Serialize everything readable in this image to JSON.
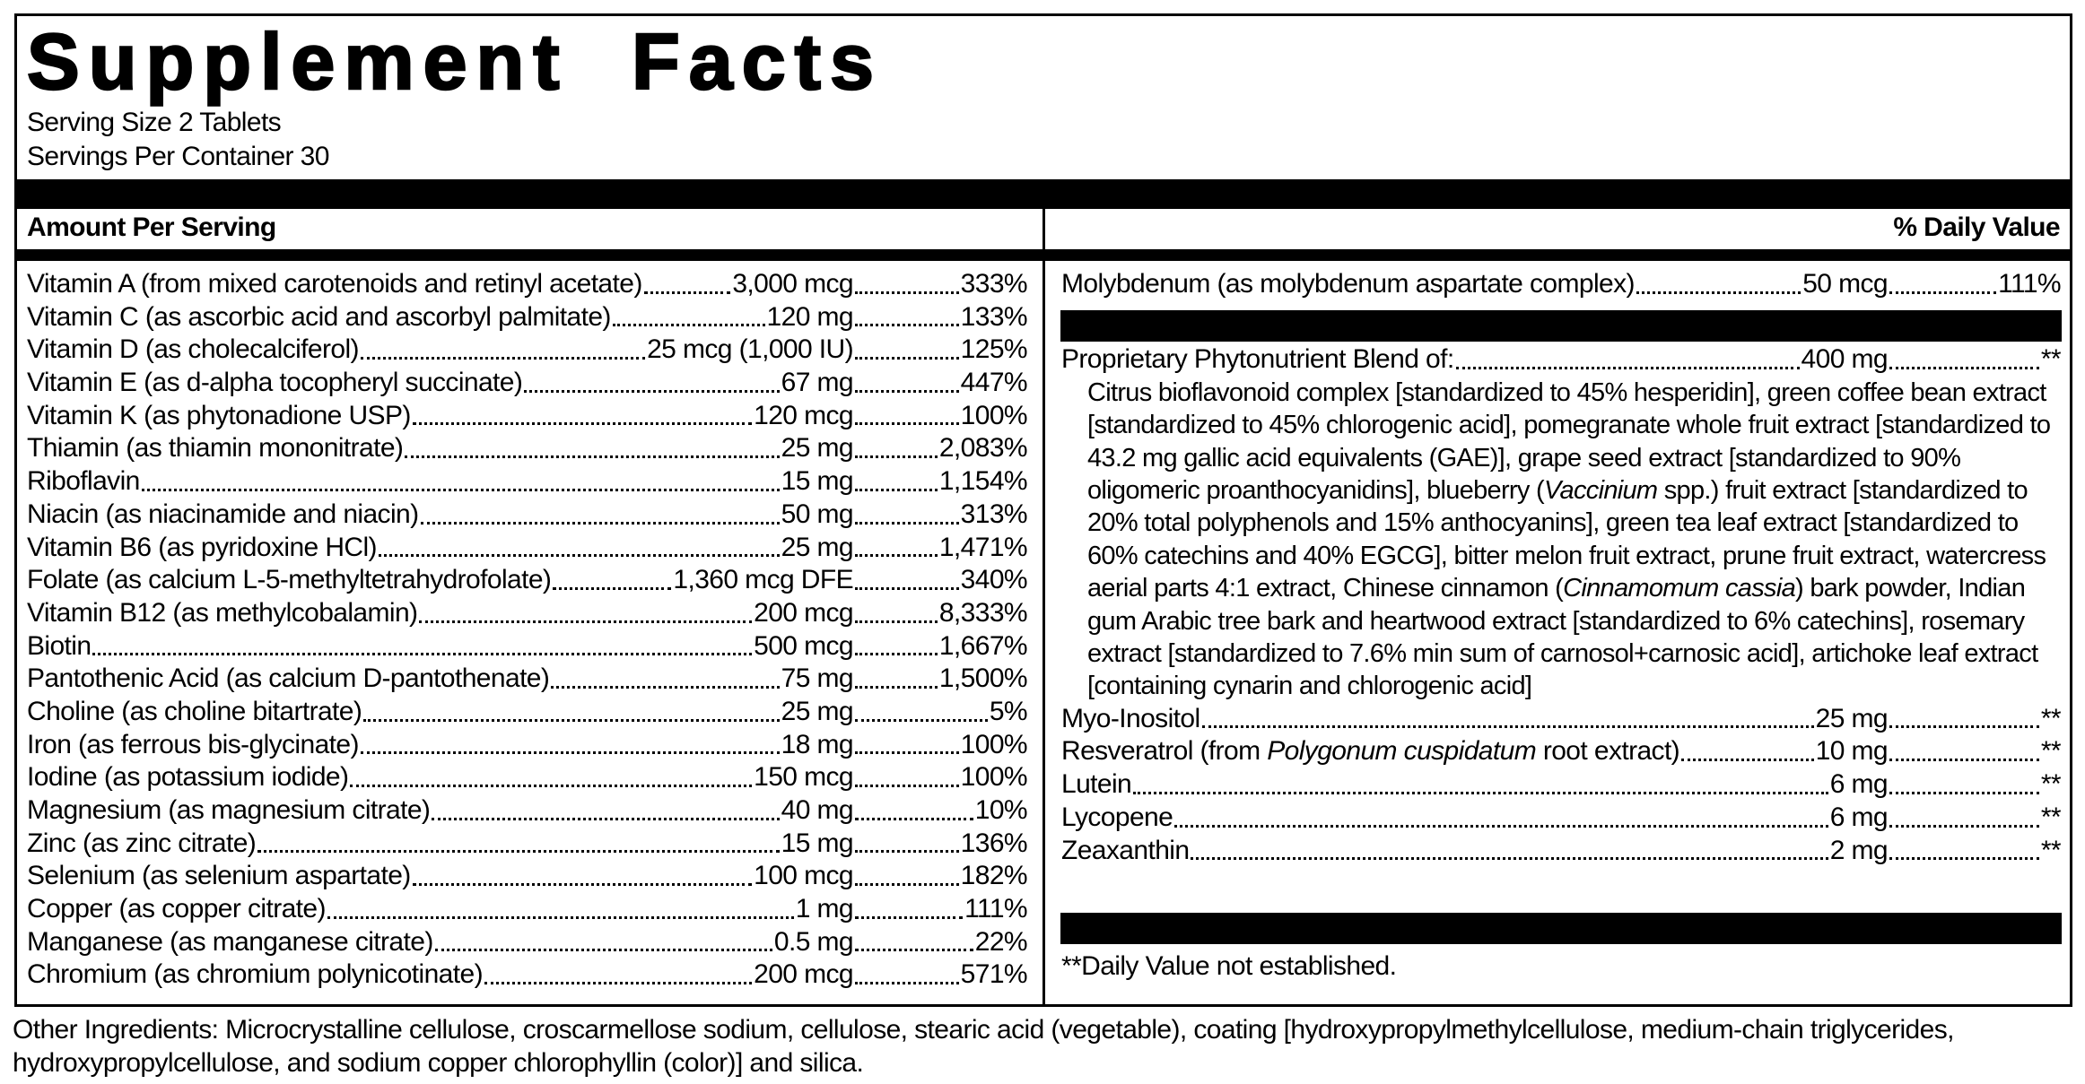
{
  "title": "Supplement Facts",
  "serving_size": "Serving Size 2 Tablets",
  "servings_per_container": "Servings Per Container 30",
  "header": {
    "amount": "Amount Per Serving",
    "daily_value": "% Daily Value"
  },
  "left_rows": [
    {
      "name": "Vitamin A (from mixed carotenoids and retinyl acetate)",
      "amount": "3,000 mcg",
      "dv": "333%"
    },
    {
      "name": "Vitamin C (as ascorbic acid and ascorbyl palmitate)",
      "amount": "120 mg",
      "dv": "133%"
    },
    {
      "name": "Vitamin D (as cholecalciferol)",
      "amount": "25 mcg (1,000 IU)",
      "dv": "125%"
    },
    {
      "name": "Vitamin E (as d-alpha tocopheryl succinate)",
      "amount": "67 mg",
      "dv": "447%"
    },
    {
      "name": "Vitamin K (as phytonadione USP)",
      "amount": "120 mcg",
      "dv": "100%"
    },
    {
      "name": "Thiamin (as thiamin mononitrate)",
      "amount": "25 mg",
      "dv": "2,083%"
    },
    {
      "name": "Riboflavin",
      "amount": "15 mg",
      "dv": "1,154%"
    },
    {
      "name": "Niacin (as niacinamide and niacin)",
      "amount": "50 mg",
      "dv": "313%"
    },
    {
      "name": "Vitamin B6 (as pyridoxine HCl)",
      "amount": "25 mg",
      "dv": "1,471%"
    },
    {
      "name": "Folate (as calcium L-5-methyltetrahydrofolate)",
      "amount": "1,360 mcg DFE",
      "dv": "340%"
    },
    {
      "name": "Vitamin B12 (as methylcobalamin)",
      "amount": "200 mcg",
      "dv": "8,333%"
    },
    {
      "name": "Biotin",
      "amount": "500 mcg",
      "dv": "1,667%"
    },
    {
      "name": "Pantothenic Acid (as calcium D-pantothenate)",
      "amount": "75 mg",
      "dv": "1,500%"
    },
    {
      "name": "Choline (as choline bitartrate)",
      "amount": "25 mg",
      "dv": "5%"
    },
    {
      "name": "Iron (as ferrous bis-glycinate)",
      "amount": "18 mg",
      "dv": "100%"
    },
    {
      "name": "Iodine (as potassium iodide)",
      "amount": "150 mcg",
      "dv": "100%"
    },
    {
      "name": "Magnesium (as magnesium citrate)",
      "amount": "40 mg",
      "dv": "10%"
    },
    {
      "name": "Zinc (as zinc citrate)",
      "amount": "15 mg",
      "dv": "136%"
    },
    {
      "name": "Selenium (as selenium aspartate)",
      "amount": "100 mcg",
      "dv": "182%"
    },
    {
      "name": "Copper (as copper citrate)",
      "amount": "1 mg",
      "dv": "111%"
    },
    {
      "name": "Manganese (as manganese citrate)",
      "amount": "0.5 mg",
      "dv": "22%"
    },
    {
      "name": "Chromium (as chromium polynicotinate)",
      "amount": "200 mcg",
      "dv": "571%"
    }
  ],
  "molybdenum": {
    "name": "Molybdenum (as molybdenum aspartate complex)",
    "amount": "50 mcg",
    "dv": "111%"
  },
  "blend": {
    "name": "Proprietary Phytonutrient Blend of:",
    "amount": "400 mg",
    "dv": "**",
    "description": [
      {
        "text": "Citrus bioflavonoid complex [standardized to 45% hesperidin], green coffee bean extract [standardized to 45% chlorogenic acid], pomegranate whole fruit extract [standardized to 43.2 mg gallic acid equivalents (GAE)], grape seed extract [standardized to 90% oligomeric proanthocyanidins], blueberry (",
        "italic": false
      },
      {
        "text": "Vaccinium",
        "italic": true
      },
      {
        "text": " spp.) fruit extract [standardized to 20% total polyphenols and 15% anthocyanins], green tea leaf extract [standardized to 60% catechins and 40% EGCG], bitter melon fruit extract, prune fruit extract, watercress aerial parts 4:1 extract, Chinese cinnamon (",
        "italic": false
      },
      {
        "text": "Cinnamomum cassia",
        "italic": true
      },
      {
        "text": ") bark powder, Indian gum Arabic tree bark and heartwood extract [standardized to 6% catechins], rosemary extract [standardized to 7.6% min sum of carnosol+carnosic acid], artichoke leaf extract [containing cynarin and chlorogenic acid]",
        "italic": false
      }
    ]
  },
  "right_rows": [
    {
      "name": "Myo-Inositol",
      "amount": "25 mg",
      "dv": "**"
    },
    {
      "name": [
        {
          "text": "Resveratrol (from ",
          "italic": false
        },
        {
          "text": "Polygonum cuspidatum",
          "italic": true
        },
        {
          "text": " root extract)",
          "italic": false
        }
      ],
      "amount": "10 mg",
      "dv": "**"
    },
    {
      "name": "Lutein",
      "amount": "6 mg",
      "dv": "**"
    },
    {
      "name": "Lycopene",
      "amount": "6 mg",
      "dv": "**"
    },
    {
      "name": "Zeaxanthin",
      "amount": "2 mg",
      "dv": "**"
    }
  ],
  "footnote": "**Daily Value not established.",
  "other_ingredients": "Other Ingredients: Microcrystalline cellulose, croscarmellose sodium, cellulose, stearic acid (vegetable), coating [hydroxypropylmethylcellulose, medium-chain triglycerides, hydroxypropylcellulose, and sodium copper chlorophyllin (color)] and silica."
}
